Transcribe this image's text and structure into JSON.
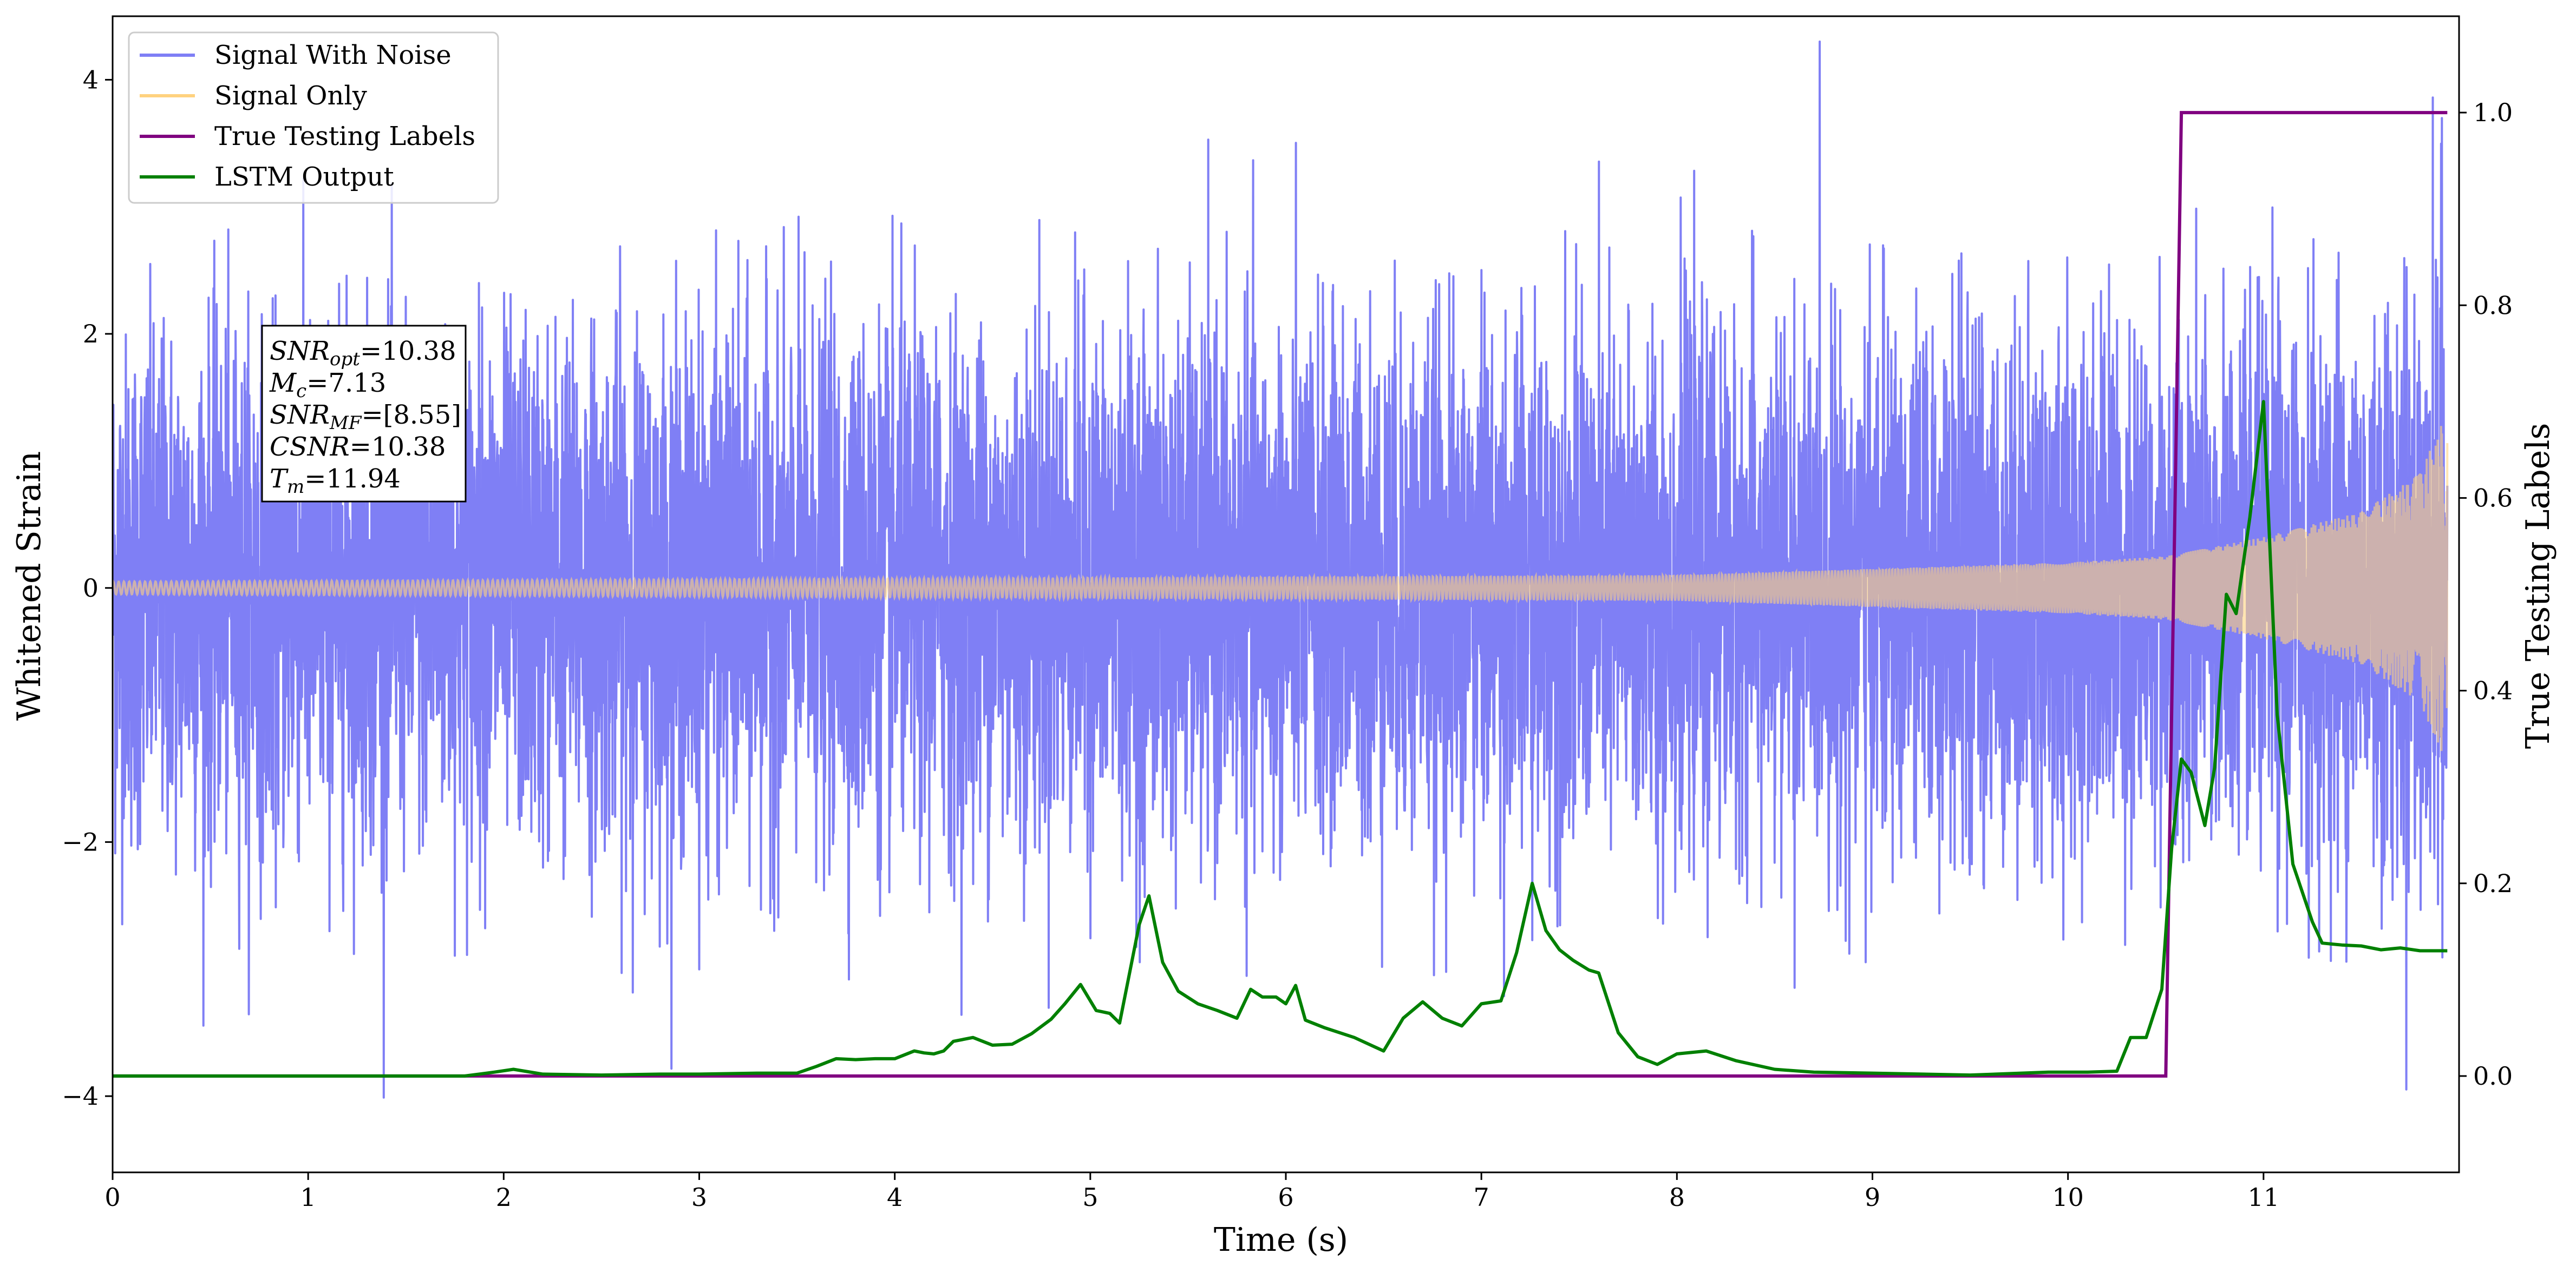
{
  "chart_data": {
    "type": "line",
    "xlabel": "Time (s)",
    "ylabel_left": "Whitened Strain",
    "ylabel_right": "True Testing Labels",
    "xlim": [
      0,
      12.0
    ],
    "ylim_left": [
      -4.6,
      4.5
    ],
    "ylim_right": [
      -0.1,
      1.1
    ],
    "x_ticks": [
      0,
      1,
      2,
      3,
      4,
      5,
      6,
      7,
      8,
      9,
      10,
      11
    ],
    "x_tick_labels": [
      "0",
      "1",
      "2",
      "3",
      "4",
      "5",
      "6",
      "7",
      "8",
      "9",
      "10",
      "11"
    ],
    "y_left_ticks": [
      -4,
      -2,
      0,
      2,
      4
    ],
    "y_left_tick_labels": [
      "−4",
      "−2",
      "0",
      "2",
      "4"
    ],
    "y_right_ticks": [
      0.0,
      0.2,
      0.4,
      0.6,
      0.8,
      1.0
    ],
    "y_right_tick_labels": [
      "0.0",
      "0.2",
      "0.4",
      "0.6",
      "0.8",
      "1.0"
    ],
    "grid": false,
    "legend_position": "top-left",
    "legend": [
      {
        "name": "Signal With Noise",
        "color": "#7f7ff5"
      },
      {
        "name": "Signal Only",
        "color": "#ffd27f"
      },
      {
        "name": "True Testing Labels",
        "color": "#800080"
      },
      {
        "name": "LSTM Output",
        "color": "#008000"
      }
    ],
    "annotation": [
      {
        "base": "SNR",
        "sub": "opt",
        "rest": "=10.38"
      },
      {
        "base": "M",
        "sub": "c",
        "rest": "=7.13"
      },
      {
        "base": "SNR",
        "sub": "MF",
        "rest": "=[8.55]"
      },
      {
        "base": "CSNR",
        "sub": "",
        "rest": "=10.38"
      },
      {
        "base": "T",
        "sub": "m",
        "rest": "=11.94"
      }
    ],
    "series": [
      {
        "name": "Signal With Noise",
        "axis": "left",
        "color": "#7f7ff5",
        "noise_std": 1.0,
        "x_range": [
          0,
          11.94
        ]
      },
      {
        "name": "Signal Only",
        "axis": "left",
        "color": "#ffd27f",
        "chirp_amplitude": [
          [
            0,
            0.05
          ],
          [
            8.0,
            0.1
          ],
          [
            10.0,
            0.2
          ],
          [
            10.5,
            0.25
          ],
          [
            11.0,
            0.4
          ],
          [
            11.5,
            0.6
          ],
          [
            11.8,
            0.9
          ],
          [
            11.94,
            1.4
          ]
        ],
        "x_range": [
          0,
          11.94
        ]
      },
      {
        "name": "True Testing Labels",
        "axis": "right",
        "color": "#800080",
        "x": [
          0,
          10.5,
          10.58,
          11.94
        ],
        "values": [
          0.0,
          0.0,
          1.0,
          1.0
        ]
      },
      {
        "name": "LSTM Output",
        "axis": "right",
        "color": "#008000",
        "x": [
          0,
          0.5,
          1.0,
          1.5,
          1.8,
          1.95,
          2.05,
          2.2,
          2.5,
          2.8,
          3.0,
          3.3,
          3.5,
          3.6,
          3.7,
          3.8,
          3.9,
          4.0,
          4.1,
          4.15,
          4.2,
          4.25,
          4.3,
          4.4,
          4.5,
          4.6,
          4.7,
          4.8,
          4.87,
          4.95,
          5.03,
          5.1,
          5.15,
          5.25,
          5.3,
          5.37,
          5.45,
          5.55,
          5.65,
          5.75,
          5.82,
          5.88,
          5.95,
          6.0,
          6.05,
          6.1,
          6.2,
          6.35,
          6.5,
          6.6,
          6.7,
          6.8,
          6.9,
          7.0,
          7.1,
          7.18,
          7.26,
          7.33,
          7.4,
          7.47,
          7.55,
          7.6,
          7.7,
          7.8,
          7.9,
          8.0,
          8.15,
          8.3,
          8.5,
          8.7,
          9.0,
          9.5,
          9.9,
          10.1,
          10.25,
          10.32,
          10.4,
          10.48,
          10.53,
          10.58,
          10.63,
          10.7,
          10.75,
          10.81,
          10.86,
          10.93,
          11.0,
          11.07,
          11.15,
          11.25,
          11.3,
          11.4,
          11.5,
          11.6,
          11.7,
          11.8,
          11.94
        ],
        "values": [
          0.0,
          0.0,
          0.0,
          0.0,
          0.0,
          0.004,
          0.007,
          0.002,
          0.001,
          0.002,
          0.002,
          0.003,
          0.003,
          0.01,
          0.018,
          0.017,
          0.018,
          0.018,
          0.026,
          0.024,
          0.023,
          0.026,
          0.036,
          0.04,
          0.032,
          0.033,
          0.044,
          0.059,
          0.075,
          0.095,
          0.068,
          0.065,
          0.055,
          0.157,
          0.187,
          0.118,
          0.088,
          0.075,
          0.068,
          0.06,
          0.09,
          0.082,
          0.082,
          0.075,
          0.094,
          0.058,
          0.05,
          0.04,
          0.026,
          0.06,
          0.077,
          0.06,
          0.052,
          0.075,
          0.078,
          0.128,
          0.2,
          0.151,
          0.131,
          0.12,
          0.11,
          0.107,
          0.045,
          0.02,
          0.012,
          0.023,
          0.026,
          0.016,
          0.007,
          0.004,
          0.003,
          0.001,
          0.004,
          0.004,
          0.005,
          0.04,
          0.04,
          0.09,
          0.236,
          0.329,
          0.315,
          0.26,
          0.32,
          0.5,
          0.48,
          0.58,
          0.7,
          0.375,
          0.22,
          0.16,
          0.138,
          0.136,
          0.135,
          0.131,
          0.133,
          0.13,
          0.13
        ]
      }
    ]
  }
}
